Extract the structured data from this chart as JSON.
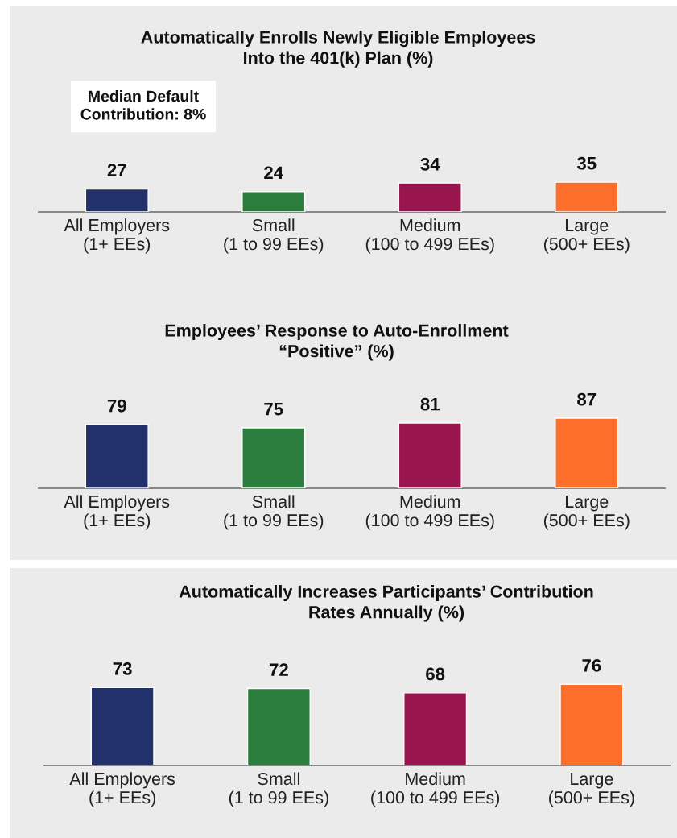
{
  "chart_data": [
    {
      "type": "bar",
      "title": "Automatically Enrolls Newly Eligible Employees\nInto the 401(k) Plan (%)",
      "categories": [
        "All Employers\n(1+ EEs)",
        "Small\n(1 to 99 EEs)",
        "Medium\n(100 to 499 EEs)",
        "Large\n(500+ EEs)"
      ],
      "values": [
        27,
        24,
        34,
        35
      ],
      "colors": [
        "#22306b",
        "#2a7d3c",
        "#98154e",
        "#ff6f2c"
      ],
      "data_labels": true,
      "annotations": [
        "Median Default\nContribution: 8%"
      ]
    },
    {
      "type": "bar",
      "title": "Employees’ Response to Auto-Enrollment\n“Positive” (%)",
      "categories": [
        "All Employers\n(1+ EEs)",
        "Small\n(1 to 99 EEs)",
        "Medium\n(100 to 499 EEs)",
        "Large\n(500+ EEs)"
      ],
      "values": [
        79,
        75,
        81,
        87
      ],
      "colors": [
        "#22306b",
        "#2a7d3c",
        "#98154e",
        "#ff6f2c"
      ],
      "data_labels": true
    },
    {
      "type": "bar",
      "title": "Automatically Increases Participants’ Contribution\nRates Annually (%)",
      "categories": [
        "All Employers\n(1+ EEs)",
        "Small\n(1 to 99 EEs)",
        "Medium\n(100 to 499 EEs)",
        "Large\n(500+ EEs)"
      ],
      "values": [
        73,
        72,
        68,
        76
      ],
      "colors": [
        "#22306b",
        "#2a7d3c",
        "#98154e",
        "#ff6f2c"
      ],
      "data_labels": true
    }
  ]
}
